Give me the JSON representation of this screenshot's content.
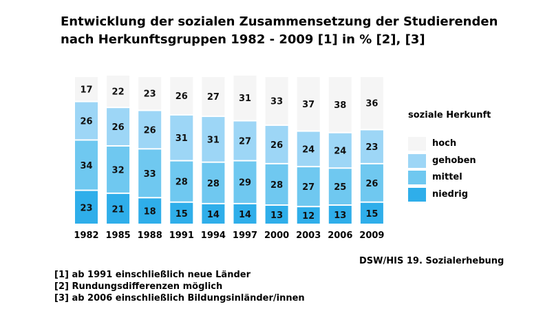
{
  "title_lines": [
    "Entwicklung der sozialen Zusammensetzung der Studierenden",
    "nach Herkunftsgruppen 1982 - 2009 [1] in % [2], [3]"
  ],
  "legend_title": "soziale Herkunft",
  "source": "DSW/HIS 19. Sozialerhebung",
  "notes": [
    "[1] ab 1991 einschließlich neue Länder",
    "[2] Rundungsdifferenzen möglich",
    "[3] ab 2006 einschließlich Bildungsinländer/innen"
  ],
  "colors": {
    "hoch": "#f5f5f5",
    "gehoben": "#9dd6f6",
    "mittel": "#6fc8f0",
    "niedrig": "#2faeea"
  },
  "chart_data": {
    "type": "bar",
    "stacked": true,
    "categories": [
      "1982",
      "1985",
      "1988",
      "1991",
      "1994",
      "1997",
      "2000",
      "2003",
      "2006",
      "2009"
    ],
    "series": [
      {
        "name": "niedrig",
        "values": [
          23,
          21,
          18,
          15,
          14,
          14,
          13,
          12,
          13,
          15
        ]
      },
      {
        "name": "mittel",
        "values": [
          34,
          32,
          33,
          28,
          28,
          29,
          28,
          27,
          25,
          26
        ]
      },
      {
        "name": "gehoben",
        "values": [
          26,
          26,
          26,
          31,
          31,
          27,
          26,
          24,
          24,
          23
        ]
      },
      {
        "name": "hoch",
        "values": [
          17,
          22,
          23,
          26,
          27,
          31,
          33,
          37,
          38,
          36
        ]
      }
    ],
    "legend_order": [
      "hoch",
      "gehoben",
      "mittel",
      "niedrig"
    ],
    "unit": "%",
    "legend_position": "right",
    "grid": false
  }
}
